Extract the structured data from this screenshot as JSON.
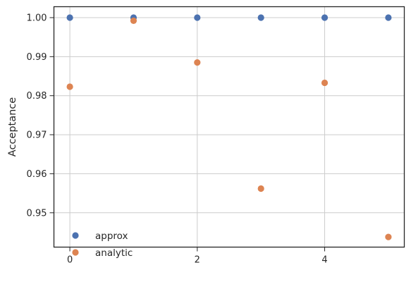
{
  "chart_data": {
    "type": "scatter",
    "title": "",
    "xlabel": "",
    "ylabel": "Acceptance",
    "xlim": [
      -0.25,
      5.25
    ],
    "ylim": [
      0.9412,
      1.0028
    ],
    "xticks": [
      0,
      2,
      4
    ],
    "xtick_labels": [
      "0",
      "2",
      "4"
    ],
    "yticks": [
      0.95,
      0.96,
      0.97,
      0.98,
      0.99,
      1.0
    ],
    "ytick_labels": [
      "0.95",
      "0.96",
      "0.97",
      "0.98",
      "0.99",
      "1.00"
    ],
    "grid": true,
    "legend": "lower-left",
    "series": [
      {
        "name": "approx",
        "color": "#4c72b0",
        "x": [
          0,
          1,
          2,
          3,
          4,
          5
        ],
        "y": [
          1.0,
          1.0,
          1.0,
          1.0,
          1.0,
          1.0
        ]
      },
      {
        "name": "analytic",
        "color": "#dd8452",
        "x": [
          0,
          1,
          2,
          3,
          4,
          5
        ],
        "y": [
          0.9823,
          0.9992,
          0.9885,
          0.9562,
          0.9833,
          0.9438
        ]
      }
    ]
  }
}
